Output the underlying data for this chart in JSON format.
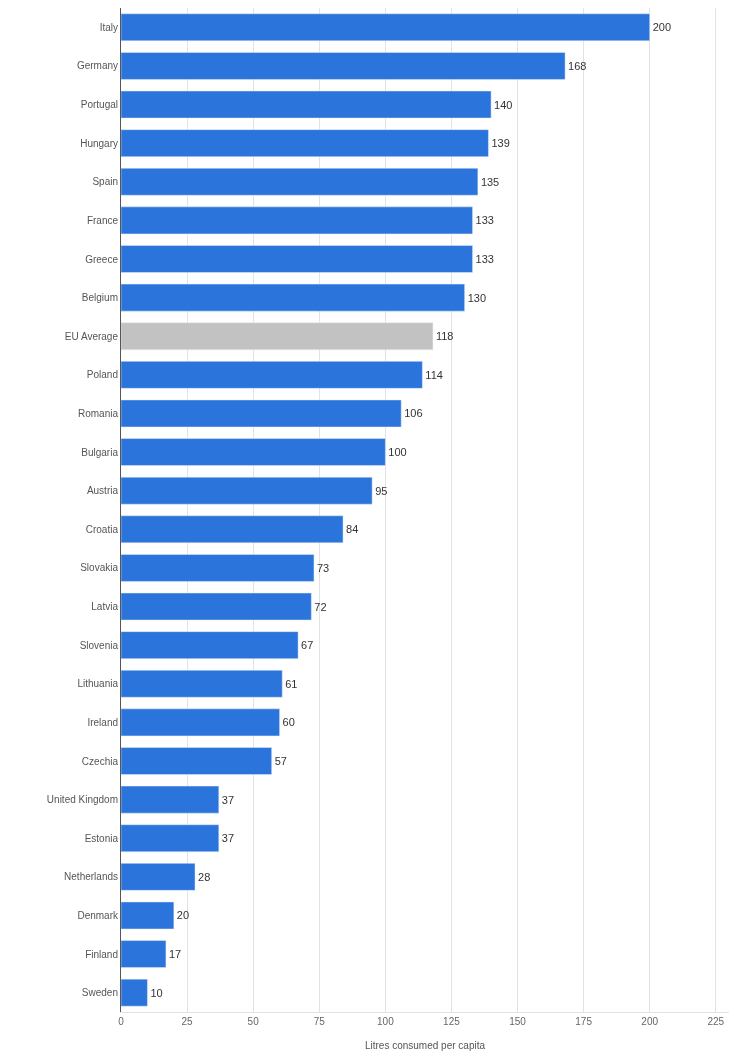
{
  "chart_data": {
    "type": "bar",
    "orientation": "horizontal",
    "xlabel": "Litres consumed per capita",
    "categories": [
      "Italy",
      "Germany",
      "Portugal",
      "Hungary",
      "Spain",
      "France",
      "Greece",
      "Belgium",
      "EU Average",
      "Poland",
      "Romania",
      "Bulgaria",
      "Austria",
      "Croatia",
      "Slovakia",
      "Latvia",
      "Slovenia",
      "Lithuania",
      "Ireland",
      "Czechia",
      "United Kingdom",
      "Estonia",
      "Netherlands",
      "Denmark",
      "Finland",
      "Sweden"
    ],
    "values": [
      200,
      168,
      140,
      139,
      135,
      133,
      133,
      130,
      118,
      114,
      106,
      100,
      95,
      84,
      73,
      72,
      67,
      61,
      60,
      57,
      37,
      37,
      28,
      20,
      17,
      10
    ],
    "colors": [
      "#2a74db",
      "#2a74db",
      "#2a74db",
      "#2a74db",
      "#2a74db",
      "#2a74db",
      "#2a74db",
      "#2a74db",
      "#c2c2c2",
      "#2a74db",
      "#2a74db",
      "#2a74db",
      "#2a74db",
      "#2a74db",
      "#2a74db",
      "#2a74db",
      "#2a74db",
      "#2a74db",
      "#2a74db",
      "#2a74db",
      "#2a74db",
      "#2a74db",
      "#2a74db",
      "#2a74db",
      "#2a74db",
      "#2a74db"
    ],
    "xlim": [
      0,
      230
    ],
    "xticks": [
      0,
      25,
      50,
      75,
      100,
      125,
      150,
      175,
      200,
      225
    ],
    "grid": "x",
    "data_labels": true
  }
}
